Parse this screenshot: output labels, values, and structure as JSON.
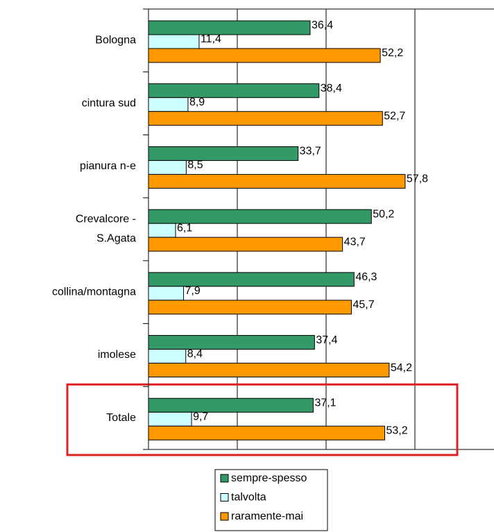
{
  "chart_data": {
    "type": "bar",
    "orientation": "horizontal",
    "categories": [
      "Bologna",
      "cintura sud",
      "pianura n-e",
      "Crevalcore - S.Agata",
      "collina/montagna",
      "imolese",
      "Totale"
    ],
    "series": [
      {
        "name": "sempre-spesso",
        "color": "#339966",
        "values": [
          36.4,
          38.4,
          33.7,
          50.2,
          46.3,
          37.4,
          37.1
        ],
        "value_labels": [
          "36,4",
          "38,4",
          "33,7",
          "50,2",
          "46,3",
          "37,4",
          "37,1"
        ]
      },
      {
        "name": "talvolta",
        "color": "#ccffff",
        "values": [
          11.4,
          8.9,
          8.5,
          6.1,
          7.9,
          8.4,
          9.7
        ],
        "value_labels": [
          "11,4",
          "8,9",
          "8,5",
          "6,1",
          "7,9",
          "8,4",
          "9,7"
        ]
      },
      {
        "name": "raramente-mai",
        "color": "#ff9900",
        "values": [
          52.2,
          52.7,
          57.8,
          43.7,
          45.7,
          54.2,
          53.2
        ],
        "value_labels": [
          "52,2",
          "52,7",
          "57,8",
          "43,7",
          "45,7",
          "54,2",
          "53,2"
        ]
      }
    ],
    "xlim": [
      0,
      80
    ],
    "xticks": [
      0,
      20,
      40,
      60,
      80
    ],
    "grid": true,
    "highlight": "Totale",
    "legend": "bottom"
  }
}
